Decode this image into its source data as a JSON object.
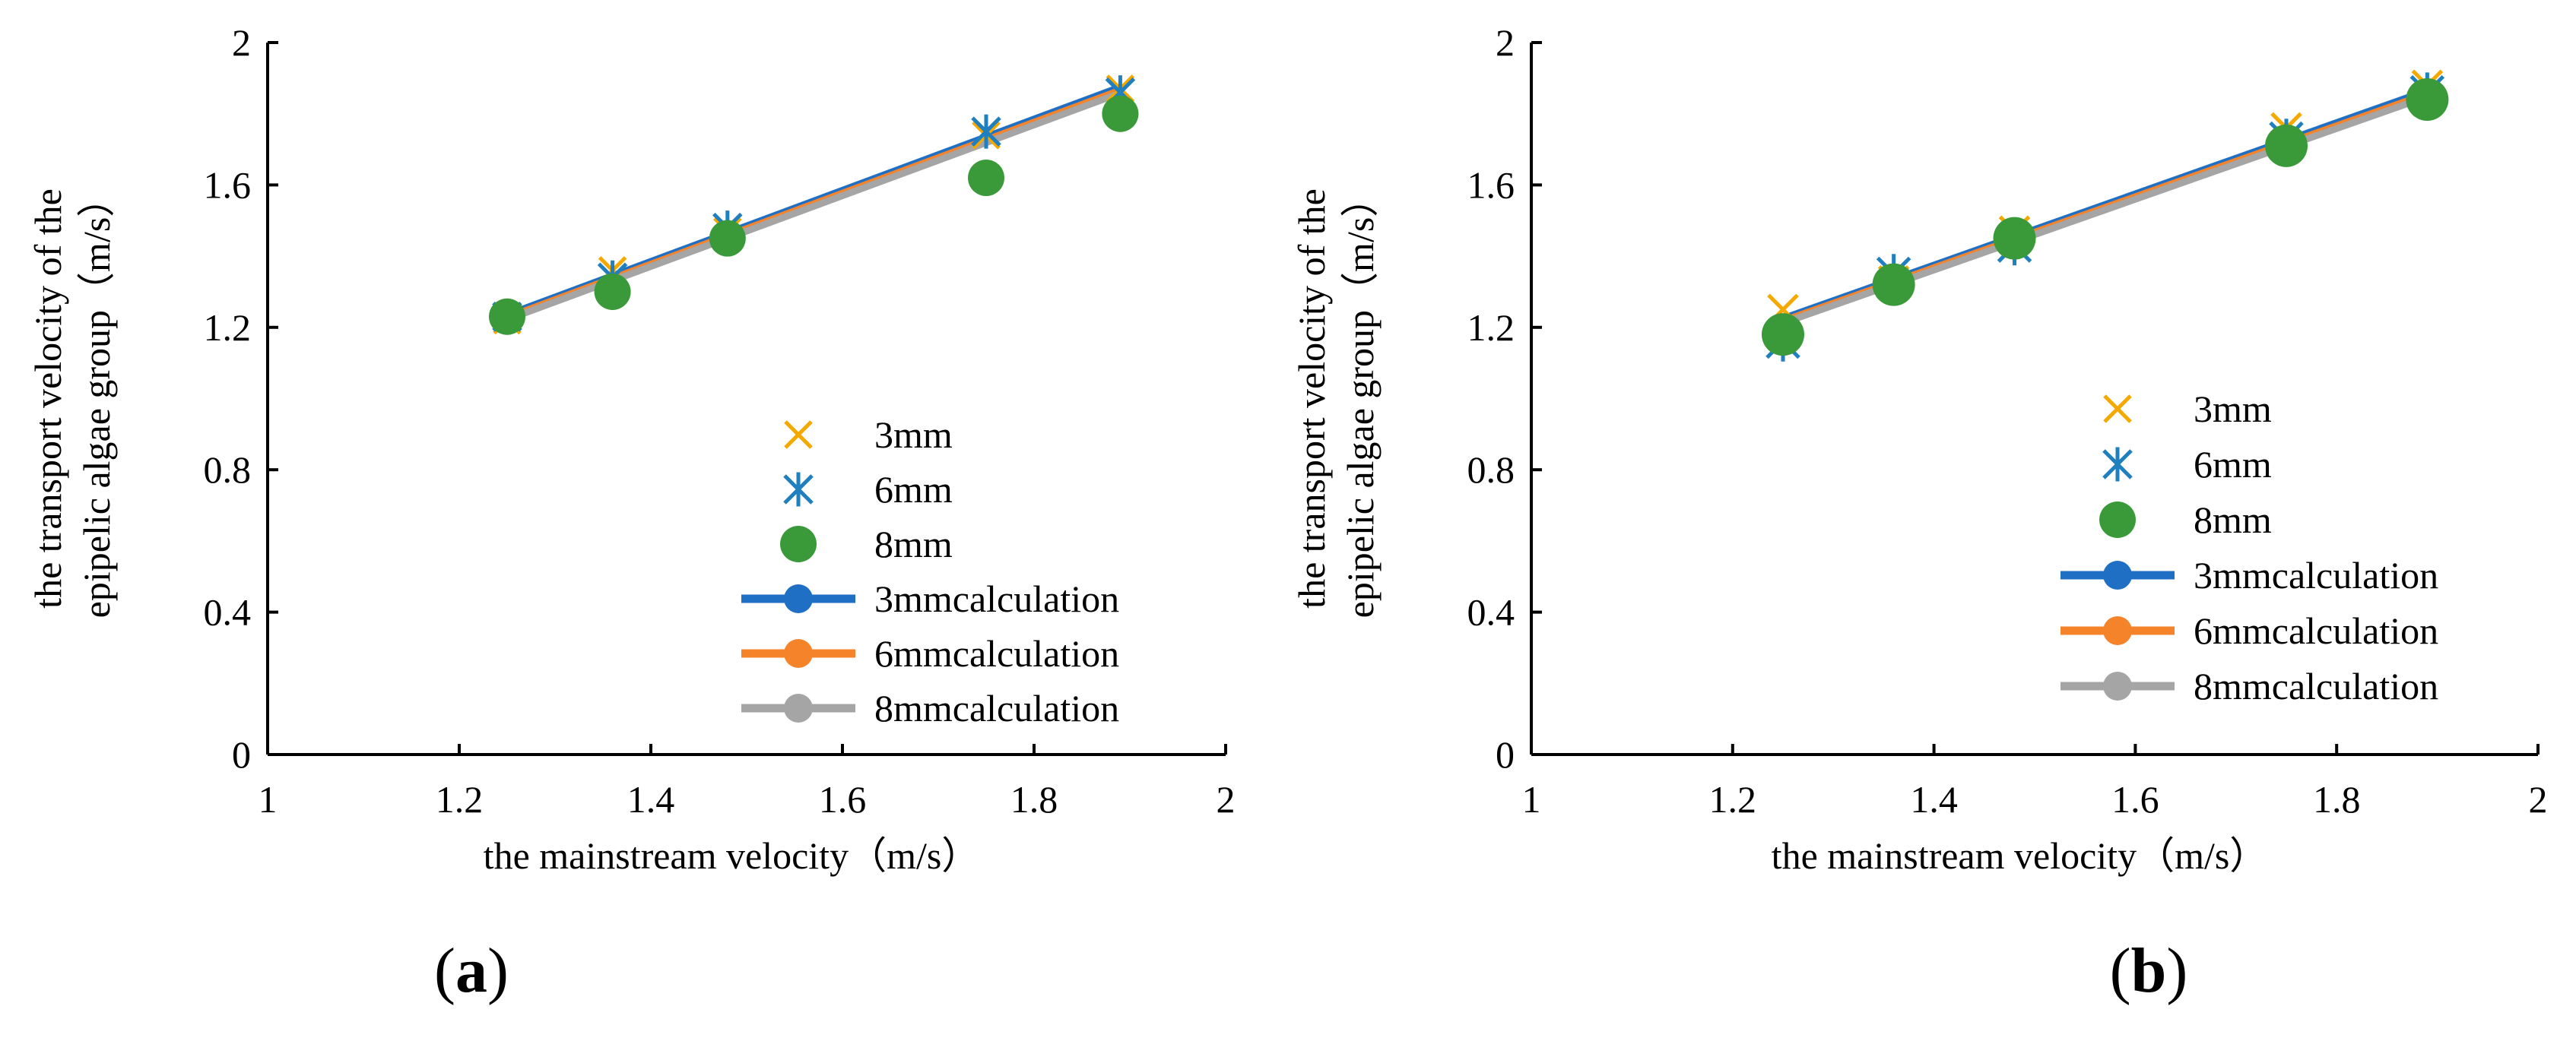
{
  "chart_data": [
    {
      "type": "scatter",
      "panel_label": "(a)",
      "panel_letter": "a",
      "xlabel": "the mainstream velocity（m/s）",
      "ylabel_line1": "the transport velocity of the",
      "ylabel_line2": "epipelic algae group（m/s）",
      "xlim": [
        1,
        2
      ],
      "ylim": [
        0,
        2
      ],
      "xticks": [
        1,
        1.2,
        1.4,
        1.6,
        1.8,
        2
      ],
      "xtick_labels": [
        "1",
        "1.2",
        "1.4",
        "1.6",
        "1.8",
        "2"
      ],
      "yticks": [
        0,
        0.4,
        0.8,
        1.2,
        1.6,
        2
      ],
      "ytick_labels": [
        "0",
        "0.4",
        "0.8",
        "1.2",
        "1.6",
        "2"
      ],
      "legend_position": "bottom-right",
      "series": [
        {
          "name": "3mm",
          "kind": "marker",
          "marker": "x",
          "color": "#F5A800",
          "x": [
            1.25,
            1.36,
            1.48,
            1.75,
            1.89
          ],
          "y": [
            1.22,
            1.36,
            1.47,
            1.74,
            1.87
          ]
        },
        {
          "name": "6mm",
          "kind": "marker",
          "marker": "asterisk",
          "color": "#1F7FBF",
          "x": [
            1.25,
            1.36,
            1.48,
            1.75,
            1.89
          ],
          "y": [
            1.23,
            1.34,
            1.48,
            1.75,
            1.86
          ]
        },
        {
          "name": "8mm",
          "kind": "marker",
          "marker": "circle",
          "color": "#3A9A3A",
          "x": [
            1.25,
            1.36,
            1.48,
            1.75,
            1.89
          ],
          "y": [
            1.23,
            1.3,
            1.45,
            1.62,
            1.8
          ]
        },
        {
          "name": "3mmcalculation",
          "kind": "line",
          "color": "#1F6FC4",
          "x": [
            1.25,
            1.89
          ],
          "y": [
            1.235,
            1.875
          ]
        },
        {
          "name": "6mmcalculation",
          "kind": "line",
          "color": "#F5832A",
          "x": [
            1.25,
            1.89
          ],
          "y": [
            1.228,
            1.866
          ]
        },
        {
          "name": "8mmcalculation",
          "kind": "line",
          "color": "#A5A5A5",
          "x": [
            1.25,
            1.89
          ],
          "y": [
            1.222,
            1.858
          ]
        }
      ]
    },
    {
      "type": "scatter",
      "panel_label": "(b)",
      "panel_letter": "b",
      "xlabel": "the mainstream velocity（m/s）",
      "ylabel_line1": "the transport velocity of the",
      "ylabel_line2": "epipelic algae group（m/s）",
      "xlim": [
        1,
        2
      ],
      "ylim": [
        0,
        2
      ],
      "xticks": [
        1,
        1.2,
        1.4,
        1.6,
        1.8,
        2
      ],
      "xtick_labels": [
        "1",
        "1.2",
        "1.4",
        "1.6",
        "1.8",
        "2"
      ],
      "yticks": [
        0,
        0.4,
        0.8,
        1.2,
        1.6,
        2
      ],
      "ytick_labels": [
        "0",
        "0.4",
        "0.8",
        "1.2",
        "1.6",
        "2"
      ],
      "legend_position": "bottom-right",
      "series": [
        {
          "name": "3mm",
          "kind": "marker",
          "marker": "x",
          "color": "#F5A800",
          "x": [
            1.25,
            1.36,
            1.48,
            1.75,
            1.89
          ],
          "y": [
            1.25,
            1.33,
            1.47,
            1.76,
            1.88
          ]
        },
        {
          "name": "6mm",
          "kind": "marker",
          "marker": "asterisk",
          "color": "#1F7FBF",
          "x": [
            1.25,
            1.36,
            1.48,
            1.75,
            1.89
          ],
          "y": [
            1.16,
            1.35,
            1.43,
            1.73,
            1.86
          ]
        },
        {
          "name": "8mm",
          "kind": "marker",
          "marker": "circle",
          "color": "#3A9A3A",
          "x": [
            1.25,
            1.36,
            1.48,
            1.75,
            1.89
          ],
          "y": [
            1.18,
            1.32,
            1.45,
            1.71,
            1.84
          ]
        },
        {
          "name": "3mmcalculation",
          "kind": "line",
          "color": "#1F6FC4",
          "x": [
            1.25,
            1.89
          ],
          "y": [
            1.225,
            1.865
          ]
        },
        {
          "name": "6mmcalculation",
          "kind": "line",
          "color": "#F5832A",
          "x": [
            1.25,
            1.89
          ],
          "y": [
            1.218,
            1.856
          ]
        },
        {
          "name": "8mmcalculation",
          "kind": "line",
          "color": "#A5A5A5",
          "x": [
            1.25,
            1.89
          ],
          "y": [
            1.212,
            1.848
          ]
        }
      ]
    }
  ]
}
